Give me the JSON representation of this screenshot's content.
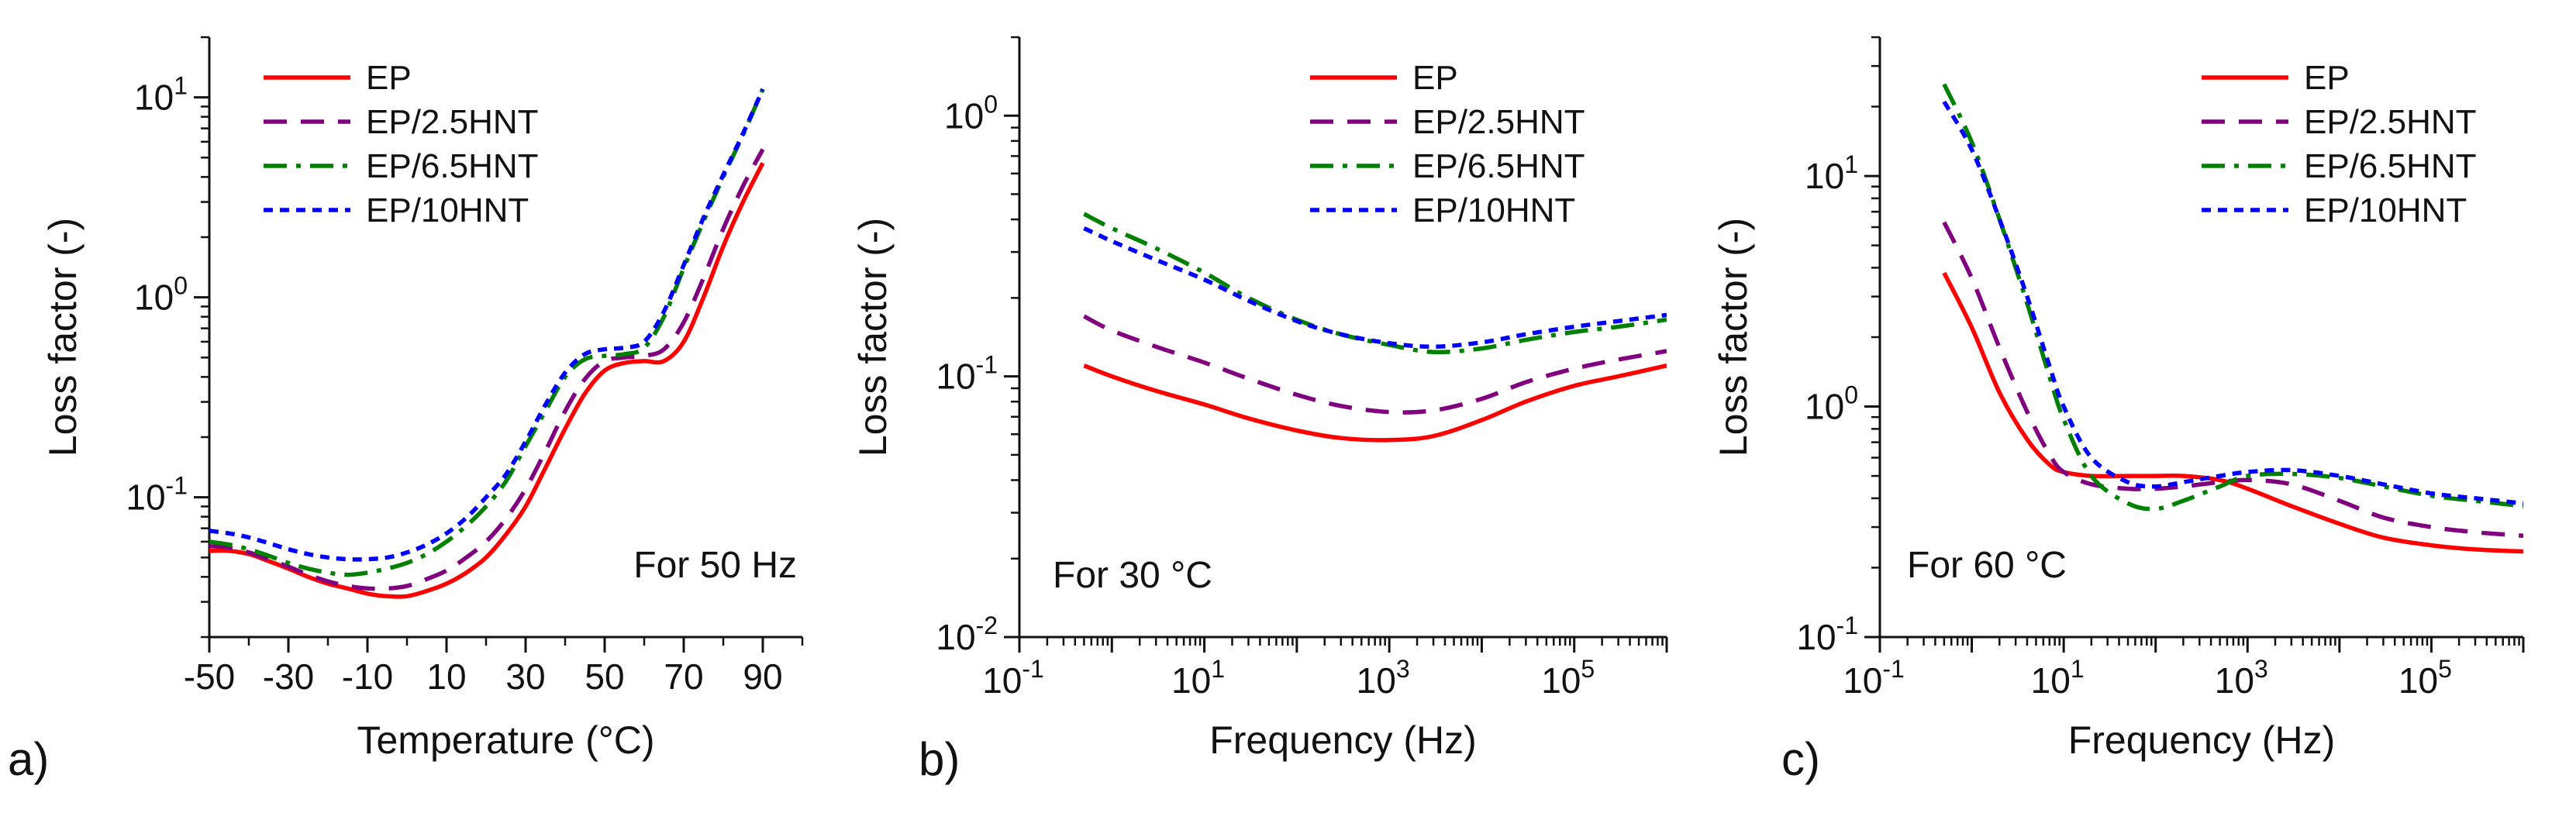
{
  "chart_data": [
    {
      "type": "line",
      "id": "a",
      "panel_label": "a)",
      "xlabel": "Temperature (°C)",
      "ylabel": "Loss factor (-)",
      "xscale": "linear",
      "yscale": "log",
      "xlim": [
        -50,
        100
      ],
      "ylim": [
        0.02,
        20
      ],
      "x_ticks": [
        -50,
        -30,
        -10,
        10,
        30,
        50,
        70,
        90
      ],
      "x_tick_labels": [
        "-50",
        "-30",
        "-10",
        "10",
        "30",
        "50",
        "70",
        "90"
      ],
      "y_tick_labels": [
        {
          "value": 0.1,
          "base": "10",
          "exp": "-1"
        },
        {
          "value": 1,
          "base": "10",
          "exp": "0"
        },
        {
          "value": 10,
          "base": "10",
          "exp": "1"
        }
      ],
      "annotation": "For 50 Hz",
      "legend": "top-left",
      "series": [
        {
          "name": "EP",
          "color": "#ff0000",
          "dash": "solid",
          "x": [
            -50,
            -45,
            -40,
            -35,
            -30,
            -25,
            -20,
            -15,
            -10,
            -5,
            0,
            5,
            10,
            15,
            20,
            25,
            30,
            35,
            40,
            45,
            50,
            55,
            60,
            65,
            70,
            75,
            80,
            85,
            90
          ],
          "y": [
            0.054,
            0.054,
            0.052,
            0.048,
            0.044,
            0.04,
            0.037,
            0.035,
            0.033,
            0.032,
            0.032,
            0.034,
            0.037,
            0.042,
            0.05,
            0.065,
            0.09,
            0.14,
            0.22,
            0.33,
            0.43,
            0.47,
            0.48,
            0.48,
            0.6,
            1.0,
            1.8,
            3.0,
            4.7
          ]
        },
        {
          "name": "EP/2.5HNT",
          "color": "#800080",
          "dash": "dash",
          "x": [
            -50,
            -45,
            -40,
            -35,
            -30,
            -25,
            -20,
            -15,
            -10,
            -5,
            0,
            5,
            10,
            15,
            20,
            25,
            30,
            35,
            40,
            45,
            50,
            55,
            60,
            65,
            70,
            75,
            80,
            85,
            90
          ],
          "y": [
            0.057,
            0.056,
            0.053,
            0.049,
            0.045,
            0.041,
            0.038,
            0.036,
            0.035,
            0.035,
            0.036,
            0.039,
            0.043,
            0.05,
            0.06,
            0.078,
            0.11,
            0.17,
            0.27,
            0.39,
            0.48,
            0.5,
            0.51,
            0.55,
            0.75,
            1.25,
            2.2,
            3.6,
            5.5
          ]
        },
        {
          "name": "EP/6.5HNT",
          "color": "#008000",
          "dash": "dashdot",
          "x": [
            -50,
            -45,
            -40,
            -35,
            -30,
            -25,
            -20,
            -15,
            -10,
            -5,
            0,
            5,
            10,
            15,
            20,
            25,
            30,
            35,
            40,
            45,
            50,
            55,
            60,
            65,
            70,
            75,
            80,
            85,
            90
          ],
          "y": [
            0.06,
            0.058,
            0.055,
            0.051,
            0.047,
            0.044,
            0.042,
            0.041,
            0.042,
            0.044,
            0.047,
            0.052,
            0.06,
            0.072,
            0.09,
            0.12,
            0.18,
            0.27,
            0.4,
            0.49,
            0.51,
            0.52,
            0.56,
            0.8,
            1.4,
            2.4,
            4.0,
            6.5,
            11.0
          ]
        },
        {
          "name": "EP/10HNT",
          "color": "#0000ff",
          "dash": "dot",
          "x": [
            -50,
            -45,
            -40,
            -35,
            -30,
            -25,
            -20,
            -15,
            -10,
            -5,
            0,
            5,
            10,
            15,
            20,
            25,
            30,
            35,
            40,
            45,
            50,
            55,
            60,
            65,
            70,
            75,
            80,
            85,
            90
          ],
          "y": [
            0.068,
            0.066,
            0.063,
            0.059,
            0.055,
            0.052,
            0.05,
            0.049,
            0.049,
            0.05,
            0.053,
            0.058,
            0.066,
            0.079,
            0.1,
            0.13,
            0.19,
            0.29,
            0.42,
            0.52,
            0.55,
            0.56,
            0.6,
            0.85,
            1.45,
            2.5,
            4.1,
            6.6,
            11.0
          ]
        }
      ]
    },
    {
      "type": "line",
      "id": "b",
      "panel_label": "b)",
      "xlabel": "Frequency (Hz)",
      "ylabel": "Loss factor (-)",
      "xscale": "log",
      "yscale": "log",
      "xlim": [
        0.1,
        1000000
      ],
      "ylim": [
        0.01,
        2
      ],
      "x_tick_labels": [
        {
          "value": 0.1,
          "base": "10",
          "exp": "-1"
        },
        {
          "value": 10,
          "base": "10",
          "exp": "1"
        },
        {
          "value": 1000,
          "base": "10",
          "exp": "3"
        },
        {
          "value": 100000,
          "base": "10",
          "exp": "5"
        }
      ],
      "y_tick_labels": [
        {
          "value": 0.01,
          "base": "10",
          "exp": "-2"
        },
        {
          "value": 0.1,
          "base": "10",
          "exp": "-1"
        },
        {
          "value": 1,
          "base": "10",
          "exp": "0"
        }
      ],
      "annotation": "For 30 °C",
      "legend": "top-right",
      "series": [
        {
          "name": "EP",
          "color": "#ff0000",
          "dash": "solid",
          "x": [
            0.5,
            1,
            3,
            10,
            30,
            100,
            300,
            1000,
            3000,
            10000,
            30000,
            100000,
            300000,
            1000000
          ],
          "y": [
            0.11,
            0.1,
            0.088,
            0.078,
            0.069,
            0.062,
            0.058,
            0.057,
            0.059,
            0.068,
            0.08,
            0.092,
            0.1,
            0.11
          ]
        },
        {
          "name": "EP/2.5HNT",
          "color": "#800080",
          "dash": "dash",
          "x": [
            0.5,
            1,
            3,
            10,
            30,
            100,
            300,
            1000,
            3000,
            10000,
            30000,
            100000,
            300000,
            1000000
          ],
          "y": [
            0.17,
            0.15,
            0.13,
            0.113,
            0.098,
            0.085,
            0.077,
            0.073,
            0.074,
            0.082,
            0.095,
            0.107,
            0.116,
            0.125
          ]
        },
        {
          "name": "EP/6.5HNT",
          "color": "#008000",
          "dash": "dashdot",
          "x": [
            0.5,
            1,
            3,
            10,
            30,
            100,
            300,
            1000,
            3000,
            10000,
            30000,
            100000,
            300000,
            1000000
          ],
          "y": [
            0.42,
            0.37,
            0.31,
            0.25,
            0.2,
            0.165,
            0.145,
            0.132,
            0.124,
            0.128,
            0.138,
            0.148,
            0.155,
            0.165
          ]
        },
        {
          "name": "EP/10HNT",
          "color": "#0000ff",
          "dash": "dot",
          "x": [
            0.5,
            1,
            3,
            10,
            30,
            100,
            300,
            1000,
            3000,
            10000,
            30000,
            100000,
            300000,
            1000000
          ],
          "y": [
            0.37,
            0.33,
            0.28,
            0.235,
            0.195,
            0.163,
            0.145,
            0.134,
            0.13,
            0.135,
            0.145,
            0.155,
            0.163,
            0.172
          ]
        }
      ]
    },
    {
      "type": "line",
      "id": "c",
      "panel_label": "c)",
      "xlabel": "Frequency (Hz)",
      "ylabel": "Loss factor (-)",
      "xscale": "log",
      "yscale": "log",
      "xlim": [
        0.1,
        1000000
      ],
      "ylim": [
        0.1,
        40
      ],
      "x_tick_labels": [
        {
          "value": 0.1,
          "base": "10",
          "exp": "-1"
        },
        {
          "value": 10,
          "base": "10",
          "exp": "1"
        },
        {
          "value": 1000,
          "base": "10",
          "exp": "3"
        },
        {
          "value": 100000,
          "base": "10",
          "exp": "5"
        }
      ],
      "y_tick_labels": [
        {
          "value": 0.1,
          "base": "10",
          "exp": "-1"
        },
        {
          "value": 1,
          "base": "10",
          "exp": "0"
        },
        {
          "value": 10,
          "base": "10",
          "exp": "1"
        }
      ],
      "annotation": "For 60 °C",
      "legend": "top-right",
      "series": [
        {
          "name": "EP",
          "color": "#ff0000",
          "dash": "solid",
          "x": [
            0.5,
            1,
            2,
            4,
            7,
            10,
            20,
            50,
            100,
            200,
            500,
            1000,
            3000,
            10000,
            30000,
            100000,
            300000,
            1000000
          ],
          "y": [
            3.8,
            2.2,
            1.15,
            0.72,
            0.56,
            0.52,
            0.5,
            0.5,
            0.5,
            0.5,
            0.48,
            0.44,
            0.37,
            0.31,
            0.27,
            0.25,
            0.24,
            0.235
          ]
        },
        {
          "name": "EP/2.5HNT",
          "color": "#800080",
          "dash": "dash",
          "x": [
            0.5,
            1,
            2,
            4,
            7,
            10,
            20,
            50,
            100,
            200,
            500,
            1000,
            3000,
            10000,
            30000,
            100000,
            300000,
            1000000
          ],
          "y": [
            6.3,
            3.6,
            1.8,
            0.95,
            0.62,
            0.52,
            0.46,
            0.44,
            0.44,
            0.45,
            0.47,
            0.48,
            0.46,
            0.39,
            0.33,
            0.3,
            0.285,
            0.275
          ]
        },
        {
          "name": "EP/6.5HNT",
          "color": "#008000",
          "dash": "dashdot",
          "x": [
            0.5,
            1,
            2,
            4,
            7,
            10,
            20,
            50,
            100,
            200,
            500,
            1000,
            3000,
            10000,
            30000,
            100000,
            300000,
            1000000
          ],
          "y": [
            25,
            14,
            6.5,
            2.8,
            1.35,
            0.88,
            0.5,
            0.38,
            0.36,
            0.39,
            0.45,
            0.5,
            0.51,
            0.49,
            0.45,
            0.41,
            0.39,
            0.37
          ]
        },
        {
          "name": "EP/10HNT",
          "color": "#0000ff",
          "dash": "dot",
          "x": [
            0.5,
            1,
            2,
            4,
            7,
            10,
            20,
            50,
            100,
            200,
            500,
            1000,
            3000,
            10000,
            30000,
            100000,
            300000,
            1000000
          ],
          "y": [
            21,
            13,
            6.5,
            3.0,
            1.5,
            1.0,
            0.6,
            0.47,
            0.45,
            0.47,
            0.5,
            0.52,
            0.53,
            0.5,
            0.46,
            0.42,
            0.4,
            0.38
          ]
        }
      ]
    }
  ]
}
